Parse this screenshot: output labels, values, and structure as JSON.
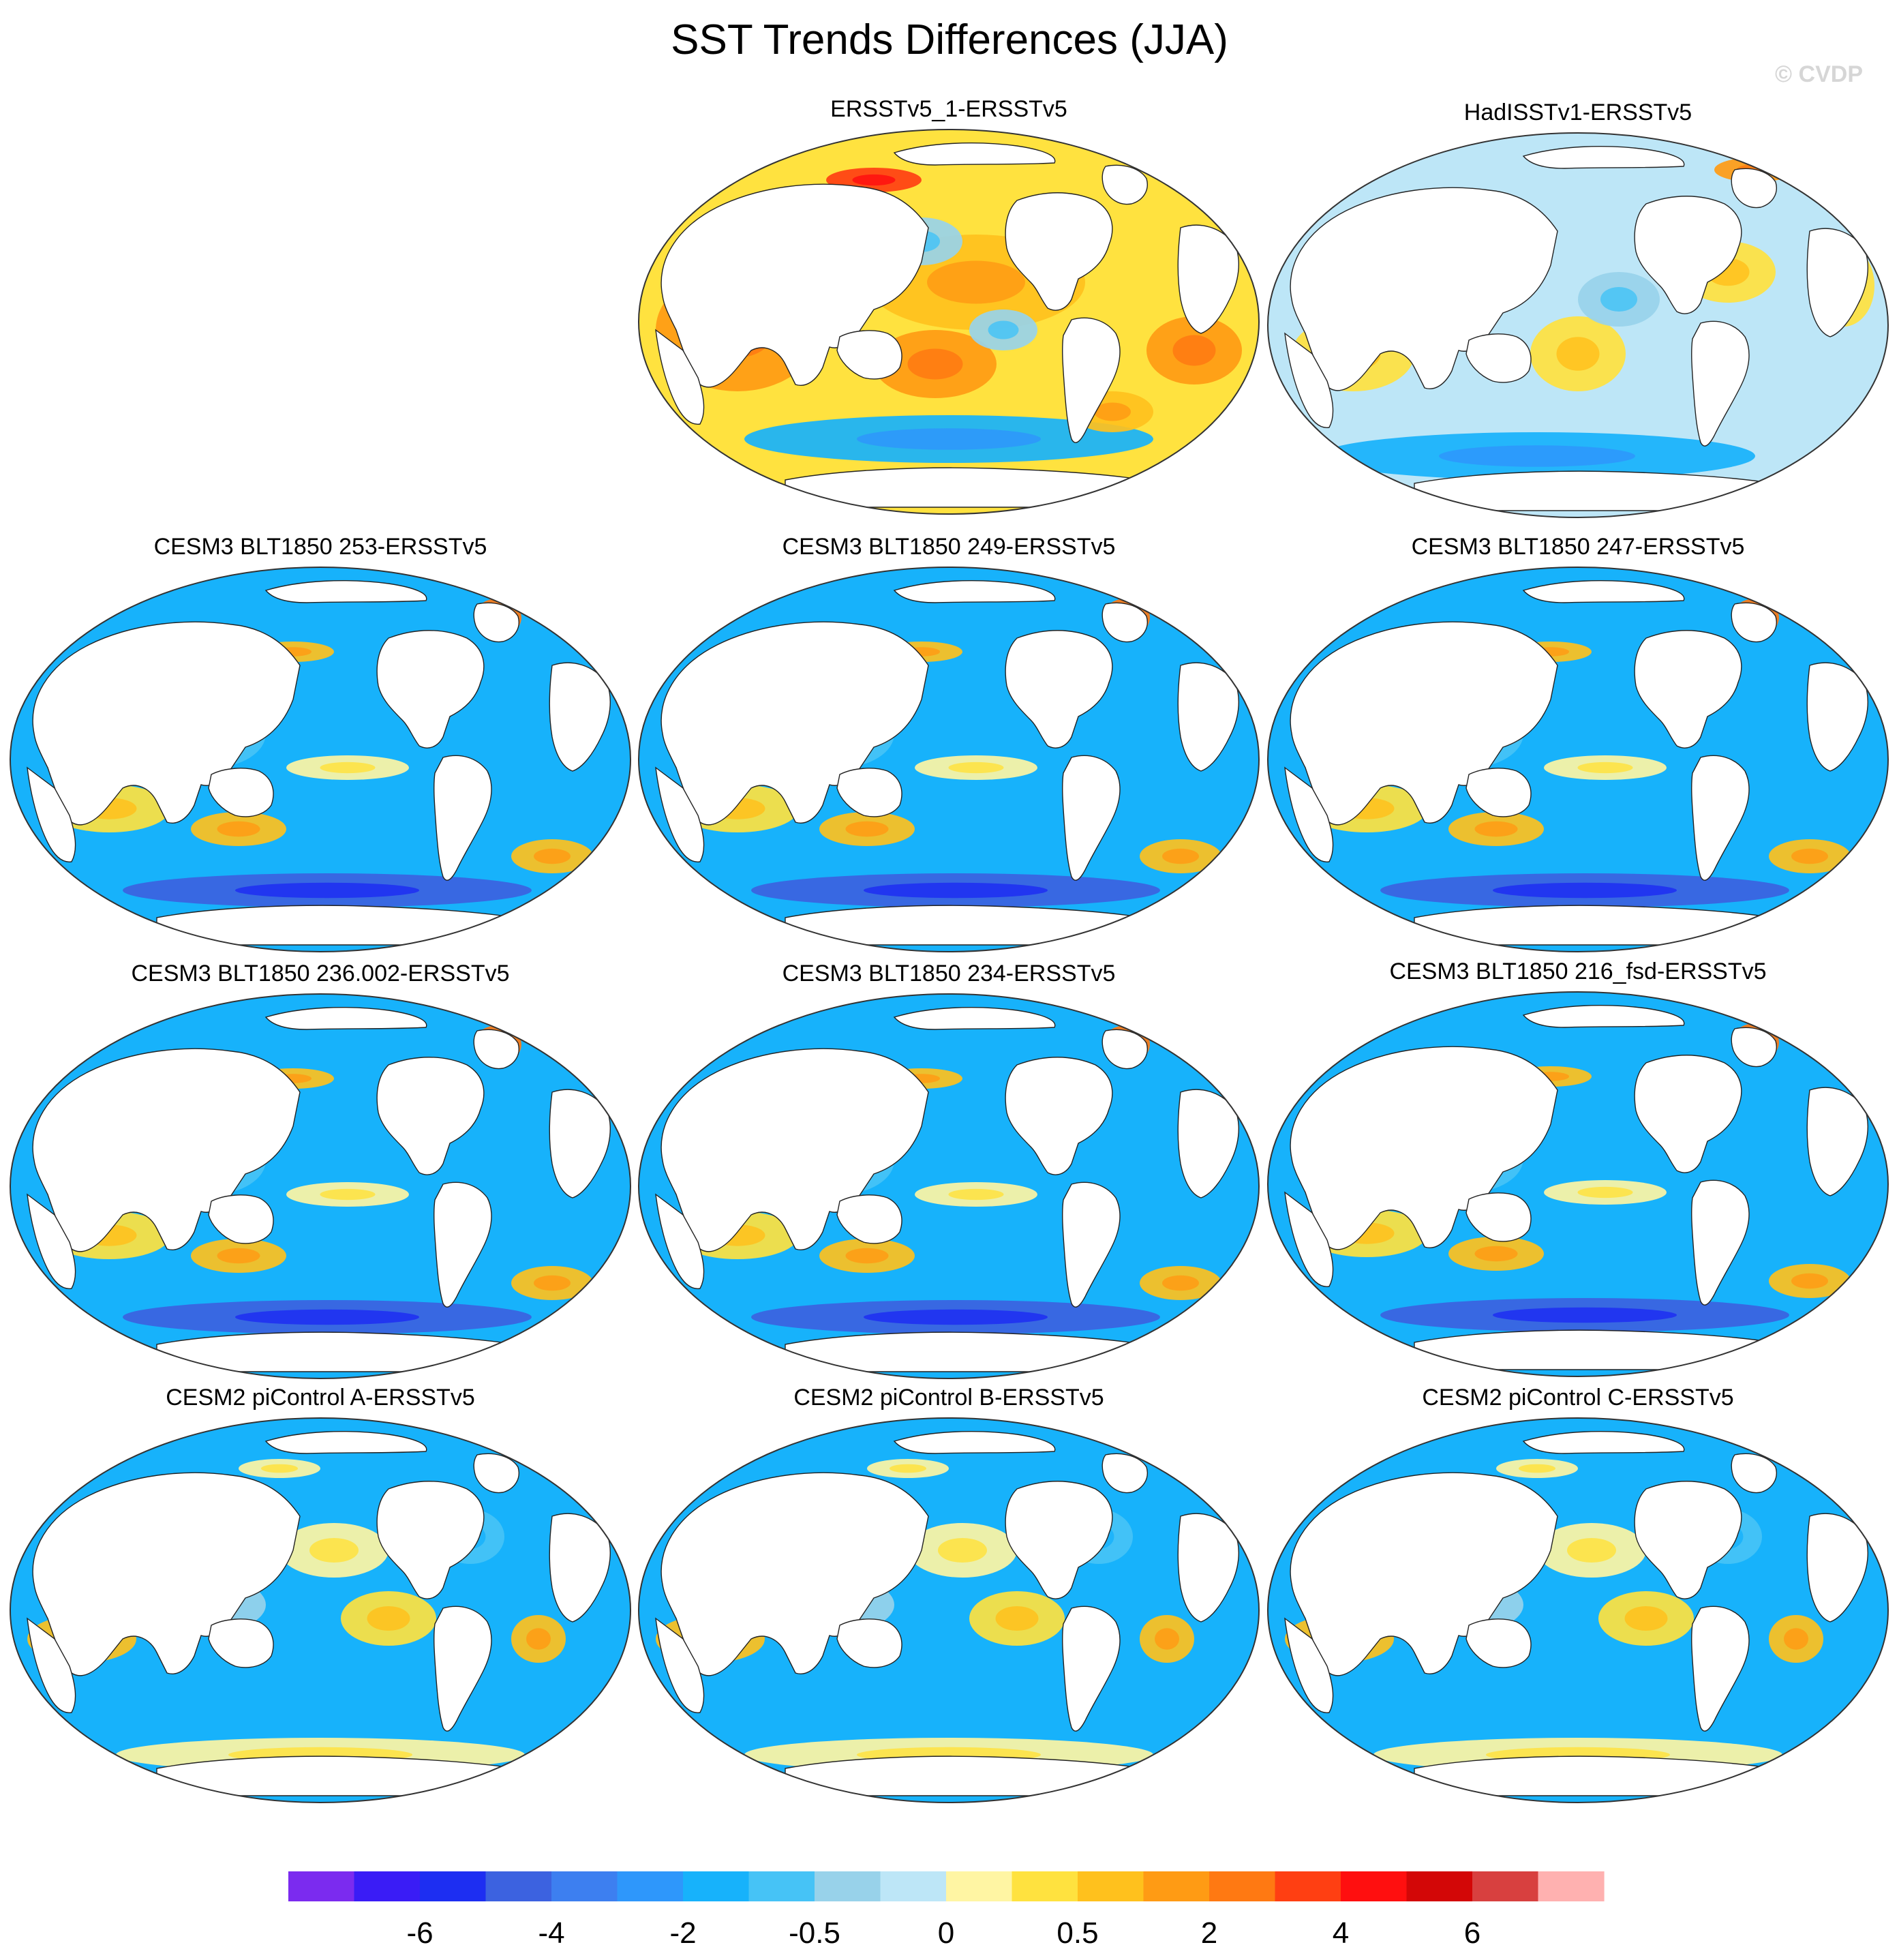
{
  "title": "SST Trends Differences (JJA)",
  "watermark": "© CVDP",
  "colors": {
    "levels": [
      "#7b2bef",
      "#3a1cf6",
      "#1d2ef2",
      "#3c62e0",
      "#3d7ff0",
      "#2e97fb",
      "#17b2fb",
      "#46c3f6",
      "#98d2ea",
      "#bde6f7",
      "#fff5a3",
      "#ffe23f",
      "#ffc11d",
      "#ff9b14",
      "#ff7912",
      "#ff3f12",
      "#ff0f0f",
      "#d30707",
      "#d8403f",
      "#ffb1b0"
    ],
    "land": "#ffffff",
    "coast": "#222222"
  },
  "colorbar": {
    "labels": [
      "-6",
      "-4",
      "-2",
      "-0.5",
      "0",
      "0.5",
      "2",
      "4",
      "6"
    ]
  },
  "panels": [
    {
      "title": "ERSSTv5_1-ERSSTv5",
      "pattern": "warm"
    },
    {
      "title": "HadISSTv1-ERSSTv5",
      "pattern": "mixed"
    },
    {
      "title": "CESM3 BLT1850 253-ERSSTv5",
      "pattern": "cool"
    },
    {
      "title": "CESM3 BLT1850 249-ERSSTv5",
      "pattern": "cool"
    },
    {
      "title": "CESM3 BLT1850 247-ERSSTv5",
      "pattern": "cool"
    },
    {
      "title": "CESM3 BLT1850 236.002-ERSSTv5",
      "pattern": "cool"
    },
    {
      "title": "CESM3 BLT1850 234-ERSSTv5",
      "pattern": "cool"
    },
    {
      "title": "CESM3 BLT1850 216_fsd-ERSSTv5",
      "pattern": "cool"
    },
    {
      "title": "CESM2 piControl A-ERSSTv5",
      "pattern": "mixed-cool"
    },
    {
      "title": "CESM2 piControl B-ERSSTv5",
      "pattern": "mixed-cool"
    },
    {
      "title": "CESM2 piControl C-ERSSTv5",
      "pattern": "mixed-cool"
    }
  ]
}
